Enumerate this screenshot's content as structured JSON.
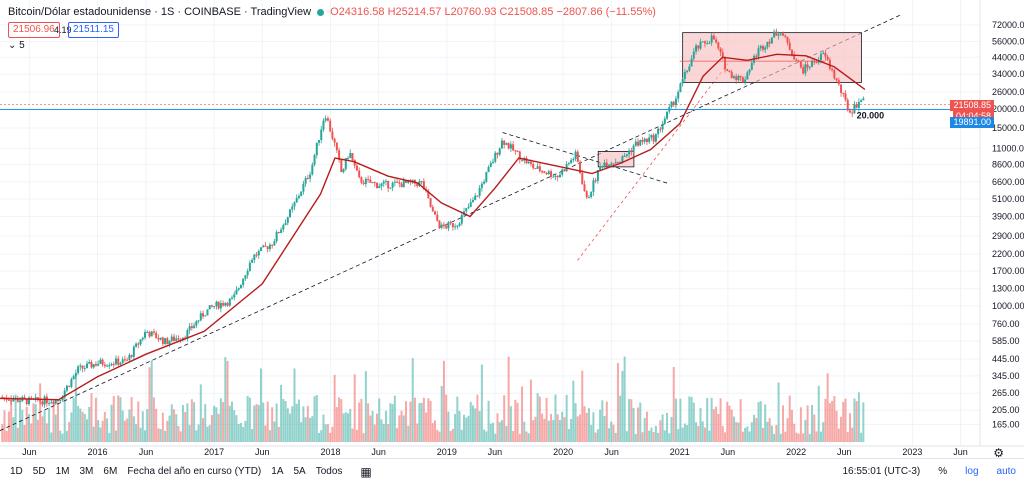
{
  "header": {
    "symbol": "Bitcoin/Dólar estadounidense · 1S · COINBASE · TradingView",
    "open": "O24316.58",
    "high": "H25214.57",
    "low": "L20760.93",
    "close": "C21508.85",
    "change": "−2807.86 (−11.55%)",
    "sell_price": "21506.96",
    "spread": "4.19",
    "buy_price": "21511.15",
    "indicator_label": "5"
  },
  "right_badges": {
    "last_price": "21508.85",
    "countdown": "04:04:58",
    "level_price": "19891.00"
  },
  "annotation_20000": "20.000",
  "bottom_bar": {
    "ranges": [
      "1D",
      "5D",
      "1M",
      "3M",
      "6M",
      "Fecha del año en curso (YTD)",
      "1A",
      "5A",
      "Todos"
    ],
    "time": "16:55:01 (UTC-3)",
    "percent": "%",
    "log": "log",
    "auto": "auto"
  },
  "colors": {
    "up": "#26a69a",
    "down": "#ef5350",
    "ma": "#b71c1c",
    "box_fill": "#f8bbbb",
    "level_line": "#2196f3"
  },
  "icons": {
    "calendar": "calendar-icon",
    "settings": "gear-icon"
  },
  "chart_data": {
    "type": "candlestick",
    "scale": "log",
    "ylim": [
      130,
      85000
    ],
    "price_ticks": [
      "72000.00",
      "56000.00",
      "44000.00",
      "34000.00",
      "26000.00",
      "20000.00",
      "15000.00",
      "11000.00",
      "8600.00",
      "6600.00",
      "5100.00",
      "3900.00",
      "2900.00",
      "2200.00",
      "1700.00",
      "1300.00",
      "1000.00",
      "760.00",
      "585.00",
      "445.00",
      "345.00",
      "265.00",
      "205.00",
      "165.00"
    ],
    "x_ticks": [
      {
        "label": "Jun",
        "date": "2015-06-01"
      },
      {
        "label": "2016",
        "date": "2016-01-01"
      },
      {
        "label": "Jun",
        "date": "2016-06-01"
      },
      {
        "label": "2017",
        "date": "2017-01-01"
      },
      {
        "label": "Jun",
        "date": "2017-06-01"
      },
      {
        "label": "2018",
        "date": "2018-01-01"
      },
      {
        "label": "Jun",
        "date": "2018-06-01"
      },
      {
        "label": "2019",
        "date": "2019-01-01"
      },
      {
        "label": "Jun",
        "date": "2019-06-01"
      },
      {
        "label": "2020",
        "date": "2020-01-01"
      },
      {
        "label": "Jun",
        "date": "2020-06-01"
      },
      {
        "label": "2021",
        "date": "2021-01-01"
      },
      {
        "label": "Jun",
        "date": "2021-06-01"
      },
      {
        "label": "2022",
        "date": "2022-01-01"
      },
      {
        "label": "Jun",
        "date": "2022-06-01"
      },
      {
        "label": "2023",
        "date": "2023-01-01"
      },
      {
        "label": "Jun",
        "date": "2023-06-01"
      }
    ],
    "price_path": [
      [
        "2015-03-01",
        250
      ],
      [
        "2015-06-01",
        235
      ],
      [
        "2015-09-01",
        240
      ],
      [
        "2015-11-01",
        380
      ],
      [
        "2016-01-01",
        420
      ],
      [
        "2016-04-01",
        430
      ],
      [
        "2016-06-01",
        680
      ],
      [
        "2016-08-01",
        580
      ],
      [
        "2016-10-01",
        640
      ],
      [
        "2016-12-01",
        900
      ],
      [
        "2017-01-01",
        1000
      ],
      [
        "2017-03-01",
        1100
      ],
      [
        "2017-05-01",
        2100
      ],
      [
        "2017-07-01",
        2600
      ],
      [
        "2017-09-01",
        4300
      ],
      [
        "2017-11-01",
        8000
      ],
      [
        "2017-12-15",
        19000
      ],
      [
        "2018-01-15",
        11500
      ],
      [
        "2018-02-05",
        7500
      ],
      [
        "2018-03-01",
        10500
      ],
      [
        "2018-04-01",
        6800
      ],
      [
        "2018-06-01",
        6300
      ],
      [
        "2018-08-01",
        6400
      ],
      [
        "2018-10-15",
        6500
      ],
      [
        "2018-11-20",
        4000
      ],
      [
        "2018-12-15",
        3300
      ],
      [
        "2019-02-01",
        3500
      ],
      [
        "2019-04-01",
        5200
      ],
      [
        "2019-06-25",
        12500
      ],
      [
        "2019-08-01",
        10500
      ],
      [
        "2019-10-01",
        8200
      ],
      [
        "2019-12-15",
        7200
      ],
      [
        "2020-02-10",
        10000
      ],
      [
        "2020-03-15",
        5000
      ],
      [
        "2020-05-01",
        8800
      ],
      [
        "2020-07-01",
        9200
      ],
      [
        "2020-08-15",
        11800
      ],
      [
        "2020-10-15",
        13000
      ],
      [
        "2020-12-20",
        24000
      ],
      [
        "2021-02-20",
        50000
      ],
      [
        "2021-04-15",
        60000
      ],
      [
        "2021-06-01",
        35000
      ],
      [
        "2021-07-20",
        31000
      ],
      [
        "2021-09-01",
        48000
      ],
      [
        "2021-11-10",
        67000
      ],
      [
        "2022-01-20",
        36000
      ],
      [
        "2022-03-30",
        46000
      ],
      [
        "2022-05-10",
        30000
      ],
      [
        "2022-06-18",
        19000
      ],
      [
        "2022-07-25",
        23500
      ],
      [
        "2022-08-05",
        21500
      ]
    ],
    "moving_average": {
      "period": "5",
      "values": [
        [
          "2015-03-01",
          245
        ],
        [
          "2015-09-01",
          240
        ],
        [
          "2016-01-01",
          340
        ],
        [
          "2016-06-01",
          480
        ],
        [
          "2016-12-01",
          680
        ],
        [
          "2017-06-01",
          1400
        ],
        [
          "2017-12-01",
          5500
        ],
        [
          "2018-01-15",
          9500
        ],
        [
          "2018-03-15",
          9000
        ],
        [
          "2018-07-01",
          7200
        ],
        [
          "2018-10-01",
          6500
        ],
        [
          "2018-12-15",
          4800
        ],
        [
          "2019-03-15",
          3900
        ],
        [
          "2019-06-01",
          6000
        ],
        [
          "2019-08-15",
          9500
        ],
        [
          "2019-12-01",
          8500
        ],
        [
          "2020-04-01",
          7500
        ],
        [
          "2020-07-01",
          8800
        ],
        [
          "2020-10-01",
          10800
        ],
        [
          "2021-01-01",
          16000
        ],
        [
          "2021-03-15",
          33000
        ],
        [
          "2021-05-15",
          44000
        ],
        [
          "2021-08-01",
          42000
        ],
        [
          "2021-11-01",
          46000
        ],
        [
          "2022-02-01",
          45000
        ],
        [
          "2022-05-01",
          38000
        ],
        [
          "2022-08-05",
          27000
        ]
      ]
    },
    "drawings": {
      "trend_support": [
        [
          "2015-03-01",
          150
        ],
        [
          "2022-12-01",
          85000
        ]
      ],
      "down_trend": [
        [
          "2019-06-25",
          14000
        ],
        [
          "2020-12-01",
          6400
        ]
      ],
      "dotted_extension": [
        [
          "2020-02-15",
          2000
        ],
        [
          "2021-06-01",
          40000
        ]
      ],
      "top_box": {
        "start": "2021-01-10",
        "end": "2022-07-25",
        "low": 30000,
        "high": 64000
      },
      "top_box_midline": {
        "start": "2021-01-01",
        "end": "2022-04-01",
        "price": 41500
      },
      "small_box": {
        "start": "2020-04-20",
        "end": "2020-08-10",
        "low": 8300,
        "high": 10500
      },
      "level_20000": {
        "price": 19891
      }
    },
    "volume": {
      "ylim": [
        0,
        100
      ],
      "description": "weekly volume bars, relative scale"
    }
  }
}
